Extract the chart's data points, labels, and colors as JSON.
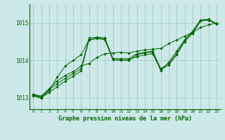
{
  "title": "Graphe pression niveau de la mer (hPa)",
  "background_color": "#cce8e8",
  "grid_color": "#99ccbb",
  "line_color": "#006600",
  "xlim": [
    -0.5,
    23.5
  ],
  "ylim": [
    1012.7,
    1015.5
  ],
  "yticks": [
    1013,
    1014,
    1015
  ],
  "xticks": [
    0,
    1,
    2,
    3,
    4,
    5,
    6,
    7,
    8,
    9,
    10,
    11,
    12,
    13,
    14,
    15,
    16,
    17,
    18,
    19,
    20,
    21,
    22,
    23
  ],
  "series": [
    [
      1013.05,
      1013.0,
      1013.15,
      1013.3,
      1013.45,
      1013.58,
      1013.72,
      1014.55,
      1014.58,
      1014.55,
      1014.02,
      1014.0,
      1014.02,
      1014.1,
      1014.15,
      1014.18,
      1013.75,
      1013.88,
      1014.15,
      1014.5,
      1014.72,
      1015.05,
      1015.08,
      1014.97
    ],
    [
      1013.08,
      1013.0,
      1013.2,
      1013.55,
      1013.85,
      1014.0,
      1014.15,
      1014.55,
      1014.6,
      1014.58,
      1014.02,
      1014.02,
      1014.0,
      1014.15,
      1014.2,
      1014.22,
      1013.73,
      1013.95,
      1014.25,
      1014.55,
      1014.78,
      1015.08,
      1015.07,
      1014.98
    ],
    [
      1013.1,
      1013.02,
      1013.22,
      1013.38,
      1013.52,
      1013.65,
      1013.78,
      1014.6,
      1014.62,
      1014.6,
      1014.05,
      1014.05,
      1014.05,
      1014.18,
      1014.22,
      1014.25,
      1013.78,
      1013.92,
      1014.18,
      1014.55,
      1014.75,
      1015.08,
      1015.1,
      1014.98
    ],
    [
      1013.1,
      1013.05,
      1013.25,
      1013.45,
      1013.6,
      1013.7,
      1013.85,
      1013.92,
      1014.08,
      1014.18,
      1014.2,
      1014.22,
      1014.2,
      1014.25,
      1014.28,
      1014.3,
      1014.32,
      1014.45,
      1014.55,
      1014.65,
      1014.75,
      1014.88,
      1014.95,
      1015.0
    ]
  ]
}
